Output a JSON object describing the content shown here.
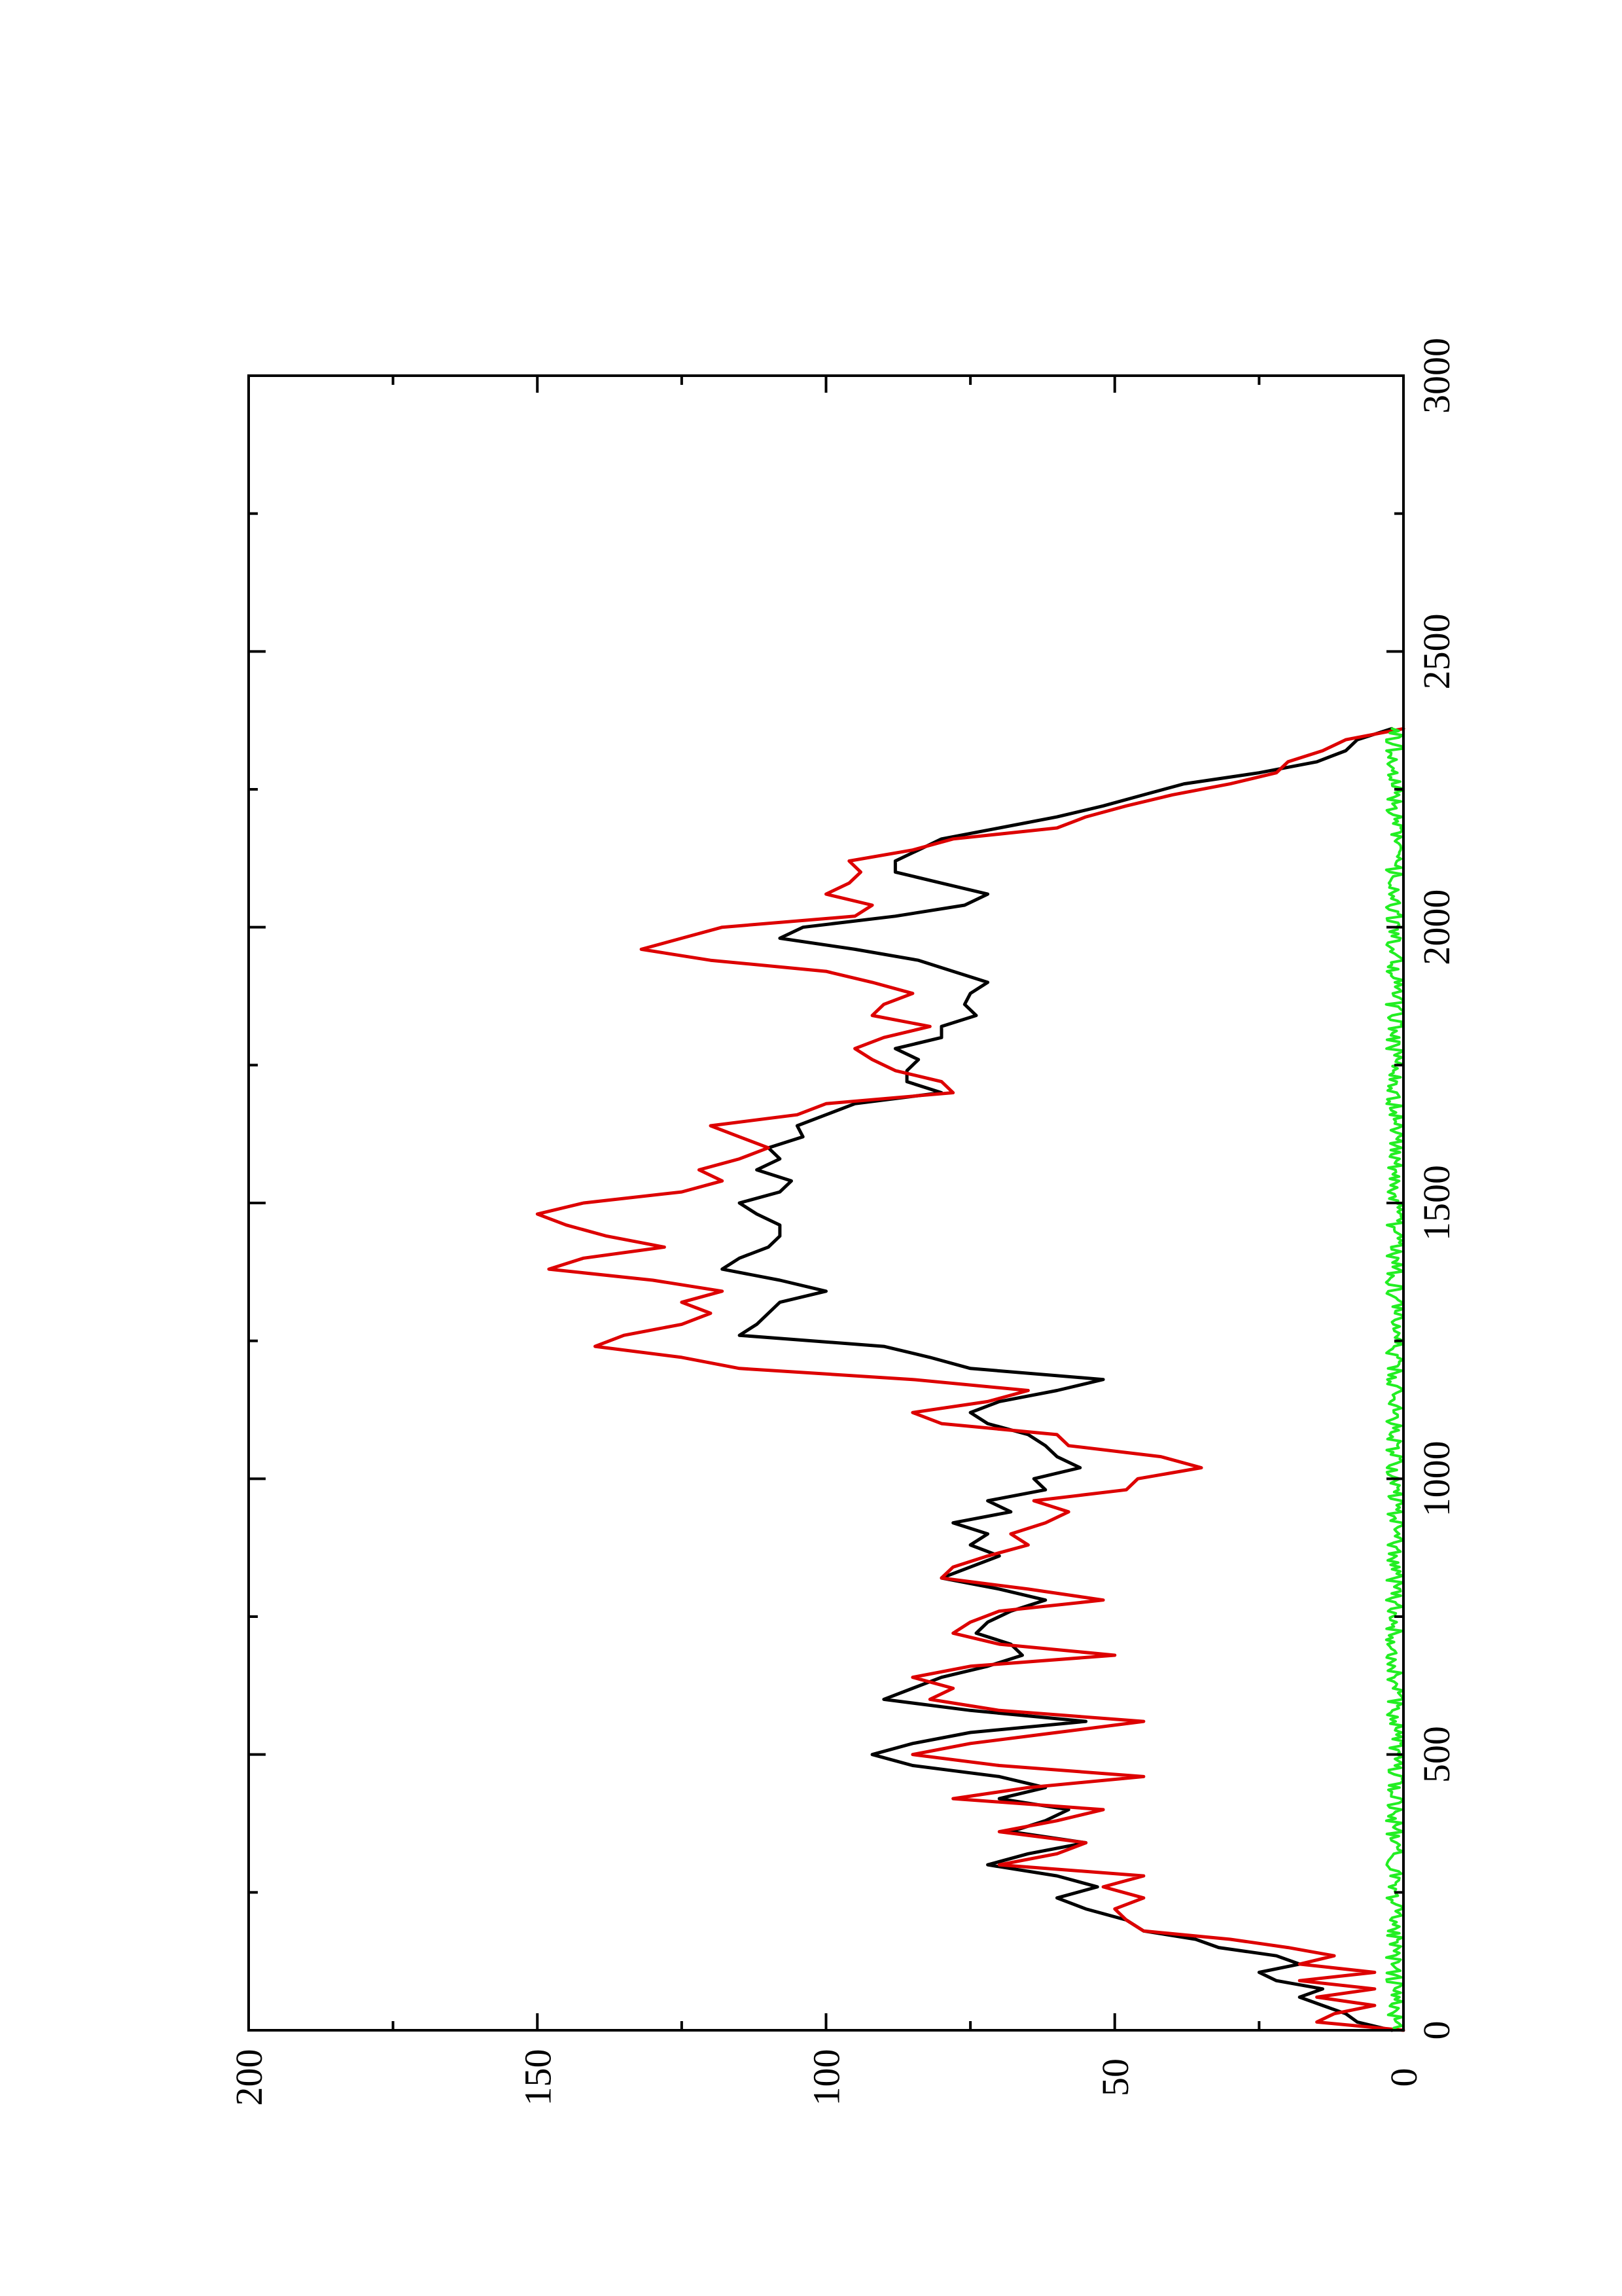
{
  "chart_data": {
    "type": "line",
    "title": "",
    "xlabel": "",
    "ylabel": "",
    "orientation": "rotated-90-ccw",
    "xlim": [
      0,
      3000
    ],
    "ylim": [
      0,
      200
    ],
    "x_ticks": [
      0,
      500,
      1000,
      1500,
      2000,
      2500,
      3000
    ],
    "x_minor_ticks": [
      250,
      750,
      1250,
      1750,
      2250,
      2750
    ],
    "y_ticks": [
      0,
      50,
      100,
      150,
      200
    ],
    "y_minor_ticks": [
      25,
      75,
      125,
      175
    ],
    "x_tick_labels": [
      "0",
      "500",
      "1000",
      "1500",
      "2000",
      "2500",
      "3000"
    ],
    "y_tick_labels": [
      "0",
      "50",
      "100",
      "150",
      "200"
    ],
    "grid": false,
    "legend": "none",
    "series": [
      {
        "color": "#000000",
        "x": [
          0,
          15,
          30,
          45,
          60,
          75,
          90,
          105,
          120,
          135,
          150,
          165,
          180,
          200,
          220,
          240,
          260,
          280,
          300,
          320,
          340,
          360,
          380,
          400,
          420,
          440,
          460,
          480,
          500,
          520,
          540,
          560,
          580,
          600,
          620,
          640,
          660,
          680,
          700,
          720,
          740,
          760,
          780,
          800,
          820,
          840,
          860,
          880,
          900,
          920,
          940,
          960,
          980,
          1000,
          1020,
          1040,
          1060,
          1080,
          1100,
          1120,
          1140,
          1160,
          1180,
          1200,
          1220,
          1240,
          1260,
          1280,
          1300,
          1320,
          1340,
          1360,
          1380,
          1400,
          1420,
          1440,
          1460,
          1480,
          1500,
          1520,
          1540,
          1560,
          1580,
          1600,
          1620,
          1640,
          1660,
          1680,
          1700,
          1720,
          1740,
          1760,
          1780,
          1800,
          1820,
          1840,
          1860,
          1880,
          1900,
          1920,
          1940,
          1960,
          1980,
          2000,
          2020,
          2040,
          2060,
          2080,
          2100,
          2120,
          2140,
          2160,
          2180,
          2200,
          2220,
          2240,
          2260,
          2280,
          2300,
          2320,
          2340,
          2360
        ],
        "y": [
          2,
          8,
          10,
          14,
          18,
          14,
          22,
          25,
          18,
          22,
          32,
          36,
          45,
          48,
          55,
          60,
          53,
          60,
          72,
          65,
          55,
          68,
          62,
          58,
          70,
          62,
          70,
          85,
          92,
          85,
          75,
          55,
          75,
          90,
          85,
          80,
          72,
          66,
          68,
          74,
          72,
          68,
          62,
          70,
          80,
          75,
          70,
          75,
          72,
          78,
          68,
          72,
          62,
          64,
          56,
          60,
          62,
          65,
          72,
          75,
          70,
          60,
          52,
          75,
          82,
          90,
          115,
          112,
          110,
          108,
          100,
          108,
          118,
          115,
          110,
          108,
          108,
          112,
          115,
          108,
          106,
          112,
          108,
          110,
          104,
          105,
          100,
          95,
          80,
          86,
          86,
          84,
          88,
          80,
          80,
          74,
          76,
          75,
          72,
          78,
          84,
          95,
          108,
          104,
          88,
          76,
          72,
          80,
          88,
          88,
          84,
          80,
          70,
          60,
          52,
          45,
          38,
          25,
          15,
          10,
          8,
          2
        ]
      },
      {
        "color": "#dd0000",
        "x": [
          0,
          15,
          30,
          45,
          60,
          75,
          90,
          105,
          120,
          135,
          150,
          165,
          180,
          200,
          220,
          240,
          260,
          280,
          300,
          320,
          340,
          360,
          380,
          400,
          420,
          440,
          460,
          480,
          500,
          520,
          540,
          560,
          580,
          600,
          620,
          640,
          660,
          680,
          700,
          720,
          740,
          760,
          780,
          800,
          820,
          840,
          860,
          880,
          900,
          920,
          940,
          960,
          980,
          1000,
          1020,
          1040,
          1060,
          1080,
          1100,
          1120,
          1140,
          1160,
          1180,
          1200,
          1220,
          1240,
          1260,
          1280,
          1300,
          1320,
          1340,
          1360,
          1380,
          1400,
          1420,
          1440,
          1460,
          1480,
          1500,
          1520,
          1540,
          1560,
          1580,
          1600,
          1620,
          1640,
          1660,
          1680,
          1700,
          1720,
          1740,
          1760,
          1780,
          1800,
          1820,
          1840,
          1860,
          1880,
          1900,
          1920,
          1940,
          1960,
          1980,
          2000,
          2020,
          2040,
          2060,
          2080,
          2100,
          2120,
          2140,
          2160,
          2180,
          2200,
          2220,
          2240,
          2260,
          2280,
          2300,
          2320,
          2340,
          2360
        ],
        "y": [
          0,
          15,
          12,
          5,
          15,
          5,
          18,
          5,
          18,
          12,
          20,
          30,
          45,
          48,
          50,
          45,
          52,
          45,
          70,
          60,
          55,
          70,
          60,
          52,
          78,
          65,
          45,
          70,
          85,
          75,
          60,
          45,
          70,
          82,
          78,
          85,
          75,
          50,
          70,
          78,
          75,
          70,
          52,
          65,
          80,
          78,
          72,
          65,
          68,
          62,
          58,
          64,
          48,
          46,
          35,
          42,
          58,
          60,
          80,
          85,
          72,
          65,
          85,
          115,
          125,
          140,
          135,
          125,
          120,
          125,
          118,
          130,
          148,
          142,
          128,
          138,
          145,
          150,
          142,
          125,
          118,
          122,
          115,
          110,
          115,
          120,
          105,
          100,
          78,
          80,
          88,
          92,
          95,
          90,
          82,
          92,
          90,
          85,
          92,
          100,
          120,
          132,
          125,
          118,
          95,
          92,
          100,
          96,
          94,
          96,
          85,
          78,
          60,
          55,
          48,
          40,
          30,
          22,
          20,
          14,
          10,
          0
        ]
      },
      {
        "color": "#22ee22",
        "noise_band": [
          0,
          3
        ],
        "x": [
          0,
          100,
          200,
          300,
          400,
          500,
          600,
          700,
          800,
          900,
          1000,
          1100,
          1200,
          1300,
          1400,
          1500,
          1600,
          1700,
          1800,
          1900,
          2000,
          2100,
          2200,
          2300,
          2360
        ],
        "y": [
          1,
          2,
          1,
          2,
          1,
          1,
          2,
          1,
          2,
          1,
          2,
          1,
          1,
          2,
          1,
          2,
          1,
          2,
          1,
          2,
          1,
          2,
          1,
          2,
          1
        ]
      }
    ]
  }
}
